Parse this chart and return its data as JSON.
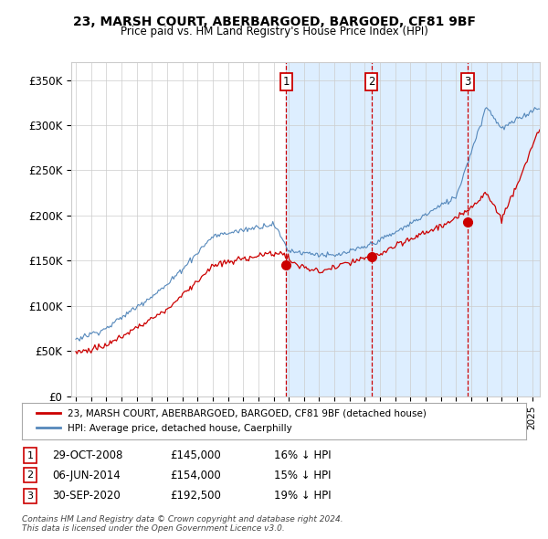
{
  "title": "23, MARSH COURT, ABERBARGOED, BARGOED, CF81 9BF",
  "subtitle": "Price paid vs. HM Land Registry's House Price Index (HPI)",
  "ylabel_ticks": [
    "£0",
    "£50K",
    "£100K",
    "£150K",
    "£200K",
    "£250K",
    "£300K",
    "£350K"
  ],
  "ytick_values": [
    0,
    50000,
    100000,
    150000,
    200000,
    250000,
    300000,
    350000
  ],
  "ylim": [
    0,
    370000
  ],
  "xlim_left": 1994.7,
  "xlim_right": 2025.5,
  "sale_dates_num": [
    2008.83,
    2014.43,
    2020.75
  ],
  "sale_prices": [
    145000,
    154000,
    192500
  ],
  "sale_labels": [
    "1",
    "2",
    "3"
  ],
  "legend_line1": "23, MARSH COURT, ABERBARGOED, BARGOED, CF81 9BF (detached house)",
  "legend_line2": "HPI: Average price, detached house, Caerphilly",
  "table_rows": [
    [
      "1",
      "29-OCT-2008",
      "£145,000",
      "16% ↓ HPI"
    ],
    [
      "2",
      "06-JUN-2014",
      "£154,000",
      "15% ↓ HPI"
    ],
    [
      "3",
      "30-SEP-2020",
      "£192,500",
      "19% ↓ HPI"
    ]
  ],
  "footer": "Contains HM Land Registry data © Crown copyright and database right 2024.\nThis data is licensed under the Open Government Licence v3.0.",
  "red_color": "#cc0000",
  "blue_color": "#5588bb",
  "shaded_color": "#ddeeff",
  "grid_color": "#cccccc",
  "background_color": "#ffffff"
}
